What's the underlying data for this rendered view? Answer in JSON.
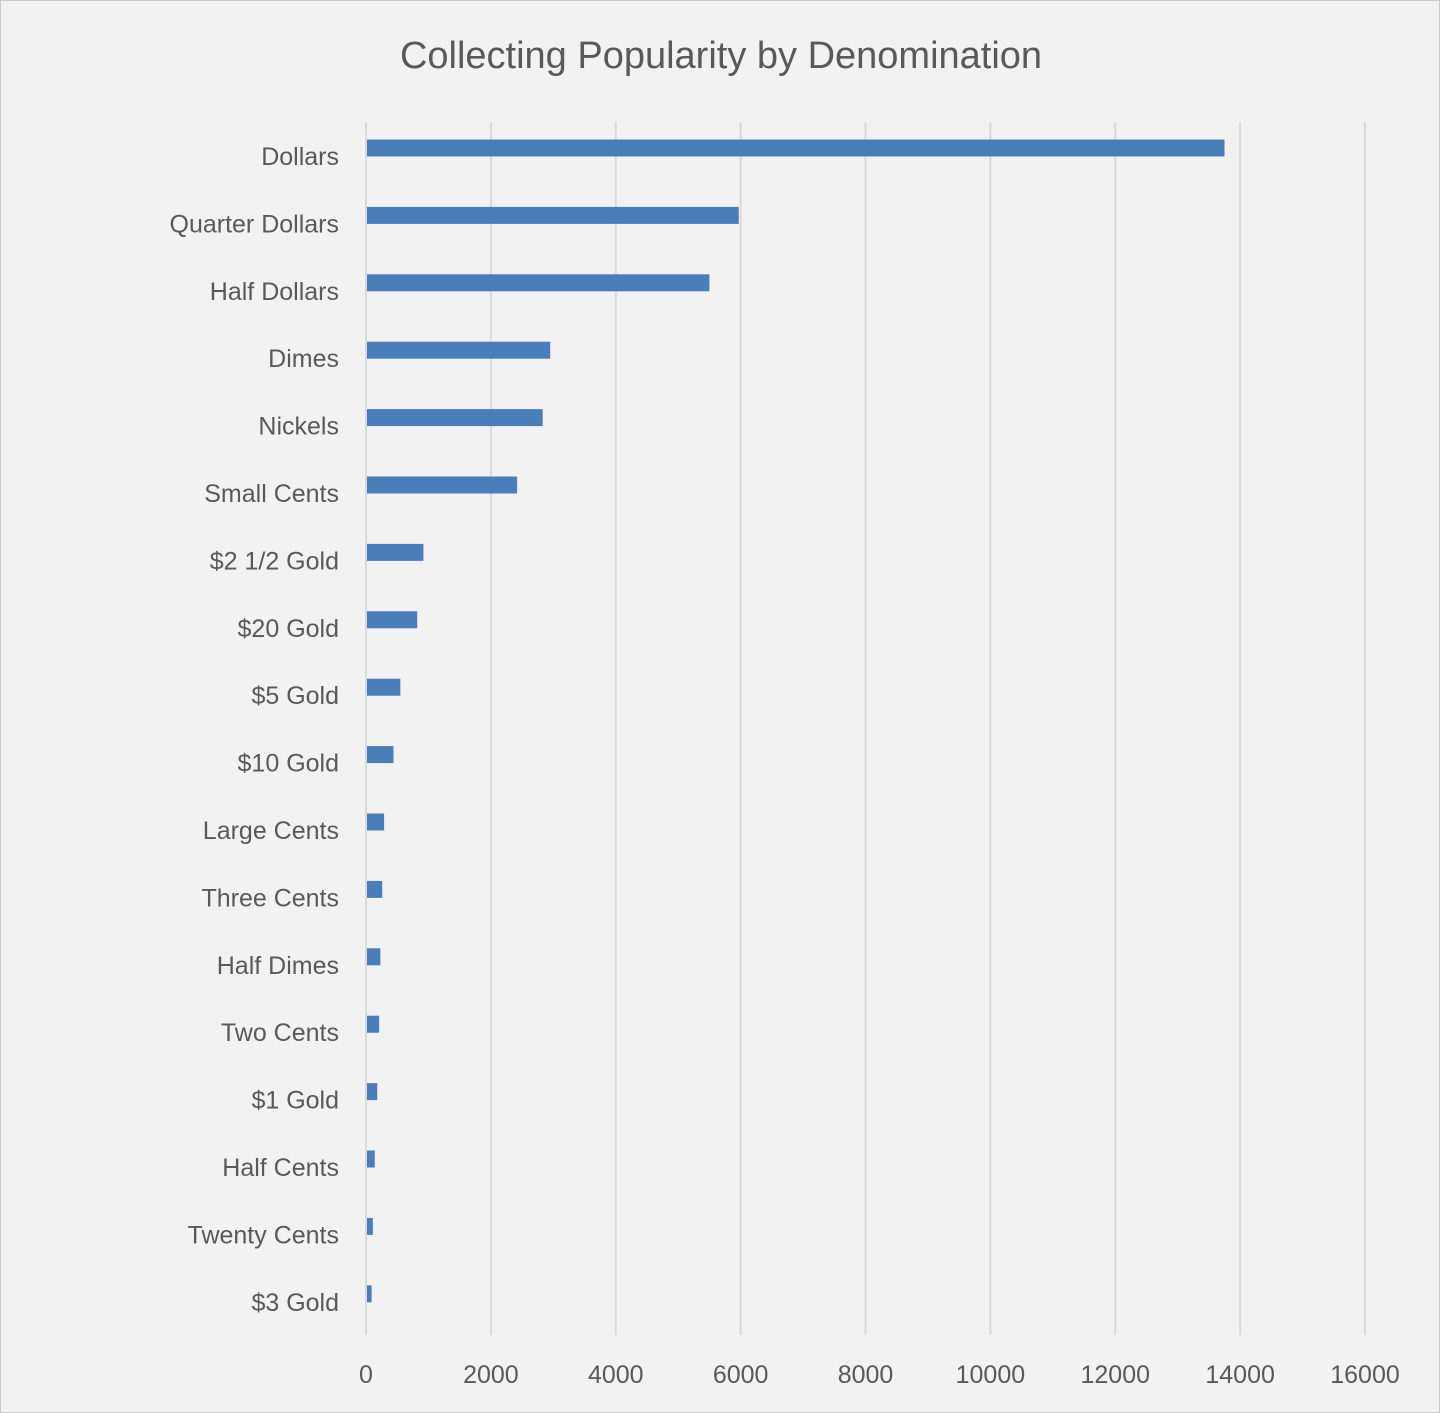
{
  "chart_data": {
    "type": "bar",
    "orientation": "horizontal",
    "title": "Collecting Popularity by Denomination",
    "xlabel": "",
    "ylabel": "",
    "xlim": [
      0,
      16000
    ],
    "x_ticks": [
      0,
      2000,
      4000,
      6000,
      8000,
      10000,
      12000,
      14000,
      16000
    ],
    "grid": "vertical",
    "legend": "none",
    "bar_color": "#4a7ebb",
    "categories": [
      "Dollars",
      "Quarter Dollars",
      "Half Dollars",
      "Dimes",
      "Nickels",
      "Small Cents",
      "$2 1/2 Gold",
      "$20 Gold",
      "$5 Gold",
      "$10 Gold",
      "Large Cents",
      "Three Cents",
      "Half Dimes",
      "Two Cents",
      "$1 Gold",
      "Half Cents",
      "Twenty Cents",
      "$3 Gold"
    ],
    "values": [
      13750,
      5970,
      5500,
      2950,
      2830,
      2420,
      920,
      820,
      550,
      440,
      290,
      260,
      230,
      210,
      180,
      140,
      110,
      90
    ]
  }
}
